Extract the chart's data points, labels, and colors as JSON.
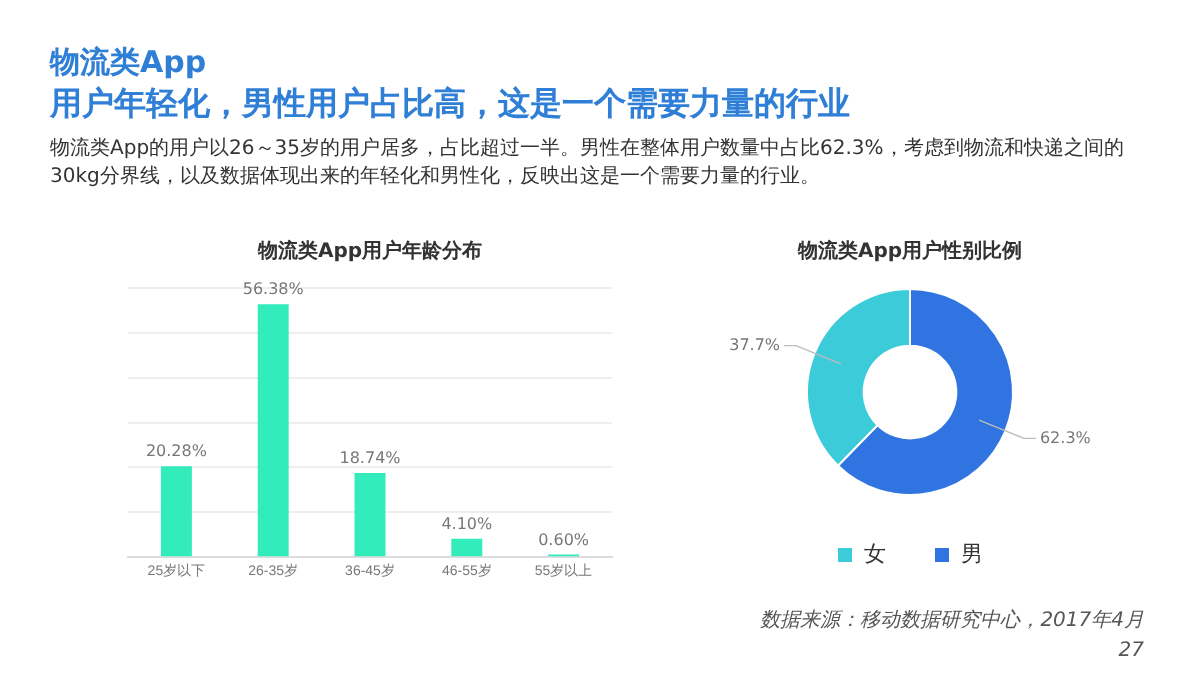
{
  "chart_data": [
    {
      "type": "other",
      "title": "物流类App",
      "subtitle": "用户年轻化，男性用户占比高，这是一个需要力量的行业",
      "annotations": [
        "物流类App的用户以26～35岁的用户居多，占比超过一半。男性在整体用户数量中占比62.3%，考虑到物流和快递之间的30kg分界线，以及数据体现出来的年轻化和男性化，反映出这是一个需要力量的行业。",
        "数据来源：移动数据研究中心，2017年4月",
        "27"
      ]
    },
    {
      "type": "bar",
      "title": "物流类App用户年龄分布",
      "categories": [
        "25岁以下",
        "26-35岁",
        "36-45岁",
        "46-55岁",
        "55岁以上"
      ],
      "values": [
        20.28,
        56.38,
        18.74,
        4.1,
        0.6
      ],
      "value_labels": [
        "20.28%",
        "56.38%",
        "18.74%",
        "4.10%",
        "0.60%"
      ],
      "color": "#33ecbb",
      "ylim": [
        0,
        60
      ],
      "yticks": [
        {
          "value": 0,
          "label": null
        },
        {
          "value": 10,
          "label": null
        },
        {
          "value": 20,
          "label": null
        },
        {
          "value": 30,
          "label": null
        },
        {
          "value": 40,
          "label": null
        },
        {
          "value": 50,
          "label": null
        },
        {
          "value": 60,
          "label": null
        }
      ],
      "grid": "y",
      "tick_labels": "x",
      "legend": false
    },
    {
      "type": "donut",
      "title": "物流类App用户性别比例",
      "categories": [
        "女",
        "男"
      ],
      "values": [
        37.7,
        62.3
      ],
      "value_labels": [
        "37.7%",
        "62.3%"
      ],
      "colors": [
        "#3ccbd9",
        "#2f74e0"
      ],
      "legend": "bottom"
    }
  ]
}
